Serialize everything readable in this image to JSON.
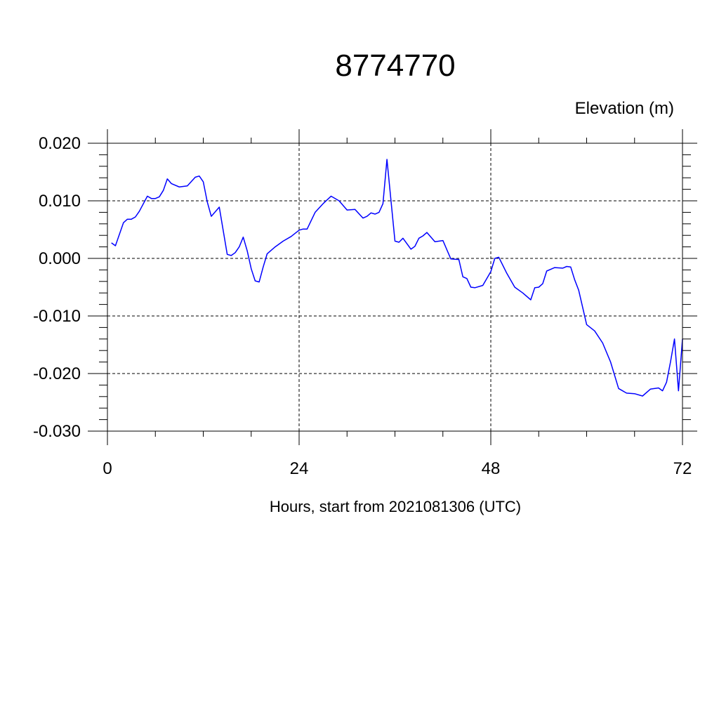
{
  "chart_data": {
    "type": "line",
    "title": "8774770",
    "ylabel": "Elevation (m)",
    "xlabel": "Hours, start from 2021081306 (UTC)",
    "xlim": [
      0,
      72
    ],
    "ylim": [
      -0.03,
      0.02
    ],
    "x_ticks": [
      0,
      24,
      48,
      72
    ],
    "x_tick_labels": [
      "0",
      "24",
      "48",
      "72"
    ],
    "y_ticks": [
      0.02,
      0.01,
      0.0,
      -0.01,
      -0.02,
      -0.03
    ],
    "y_tick_labels": [
      "0.020",
      "0.010",
      "0.000",
      "-0.010",
      "-0.020",
      "-0.030"
    ],
    "grid": true,
    "series": [
      {
        "color": "#0000ff",
        "x": [
          0.5,
          1.0,
          2.0,
          2.5,
          3.0,
          3.5,
          4.0,
          5.0,
          5.5,
          6.0,
          6.5,
          7.0,
          7.5,
          8.0,
          9.0,
          10.0,
          11.0,
          11.5,
          12.0,
          12.5,
          13.0,
          14.0,
          15.0,
          15.5,
          16.0,
          16.5,
          17.0,
          17.5,
          18.0,
          18.5,
          19.0,
          19.5,
          20.0,
          21.0,
          22.0,
          23.0,
          24.0,
          24.5,
          25.0,
          26.0,
          27.0,
          28.0,
          29.0,
          30.0,
          31.0,
          32.0,
          32.5,
          33.0,
          33.5,
          34.0,
          34.5,
          35.0,
          36.0,
          36.5,
          37.0,
          38.0,
          38.5,
          39.0,
          39.5,
          40.0,
          41.0,
          42.0,
          43.0,
          44.0,
          44.5,
          45.0,
          45.5,
          46.0,
          47.0,
          48.0,
          48.5,
          49.0,
          50.0,
          51.0,
          52.0,
          53.0,
          53.5,
          54.0,
          54.5,
          55.0,
          56.0,
          57.0,
          57.5,
          58.0,
          58.5,
          59.0,
          60.0,
          61.0,
          62.0,
          63.0,
          64.0,
          65.0,
          66.0,
          67.0,
          68.0,
          69.0,
          69.5,
          70.0,
          70.5,
          71.0,
          71.5,
          72.0
        ],
        "values": [
          0.0027,
          0.0022,
          0.0062,
          0.0068,
          0.0068,
          0.0072,
          0.0082,
          0.0108,
          0.0104,
          0.0104,
          0.0107,
          0.0118,
          0.0138,
          0.013,
          0.0124,
          0.0126,
          0.0141,
          0.0143,
          0.0133,
          0.0098,
          0.0073,
          0.0089,
          0.0007,
          0.0005,
          0.001,
          0.002,
          0.0037,
          0.0013,
          -0.0018,
          -0.0039,
          -0.0041,
          -0.0015,
          0.0008,
          0.002,
          0.003,
          0.0038,
          0.0049,
          0.0051,
          0.0051,
          0.008,
          0.0095,
          0.0108,
          0.01,
          0.0084,
          0.0085,
          0.007,
          0.0073,
          0.0079,
          0.0077,
          0.008,
          0.0095,
          0.0172,
          0.003,
          0.0028,
          0.0035,
          0.0016,
          0.0021,
          0.0035,
          0.0039,
          0.0045,
          0.0029,
          0.0031,
          -0.0001,
          -0.0002,
          -0.0032,
          -0.0035,
          -0.005,
          -0.0051,
          -0.0047,
          -0.0023,
          0.0,
          0.0002,
          -0.0026,
          -0.005,
          -0.006,
          -0.0072,
          -0.0051,
          -0.005,
          -0.0044,
          -0.0022,
          -0.0016,
          -0.0017,
          -0.0014,
          -0.0015,
          -0.0037,
          -0.0055,
          -0.0115,
          -0.0126,
          -0.0147,
          -0.018,
          -0.0226,
          -0.0234,
          -0.0235,
          -0.0239,
          -0.0227,
          -0.0225,
          -0.023,
          -0.0215,
          -0.018,
          -0.014,
          -0.023,
          -0.014
        ]
      }
    ]
  }
}
